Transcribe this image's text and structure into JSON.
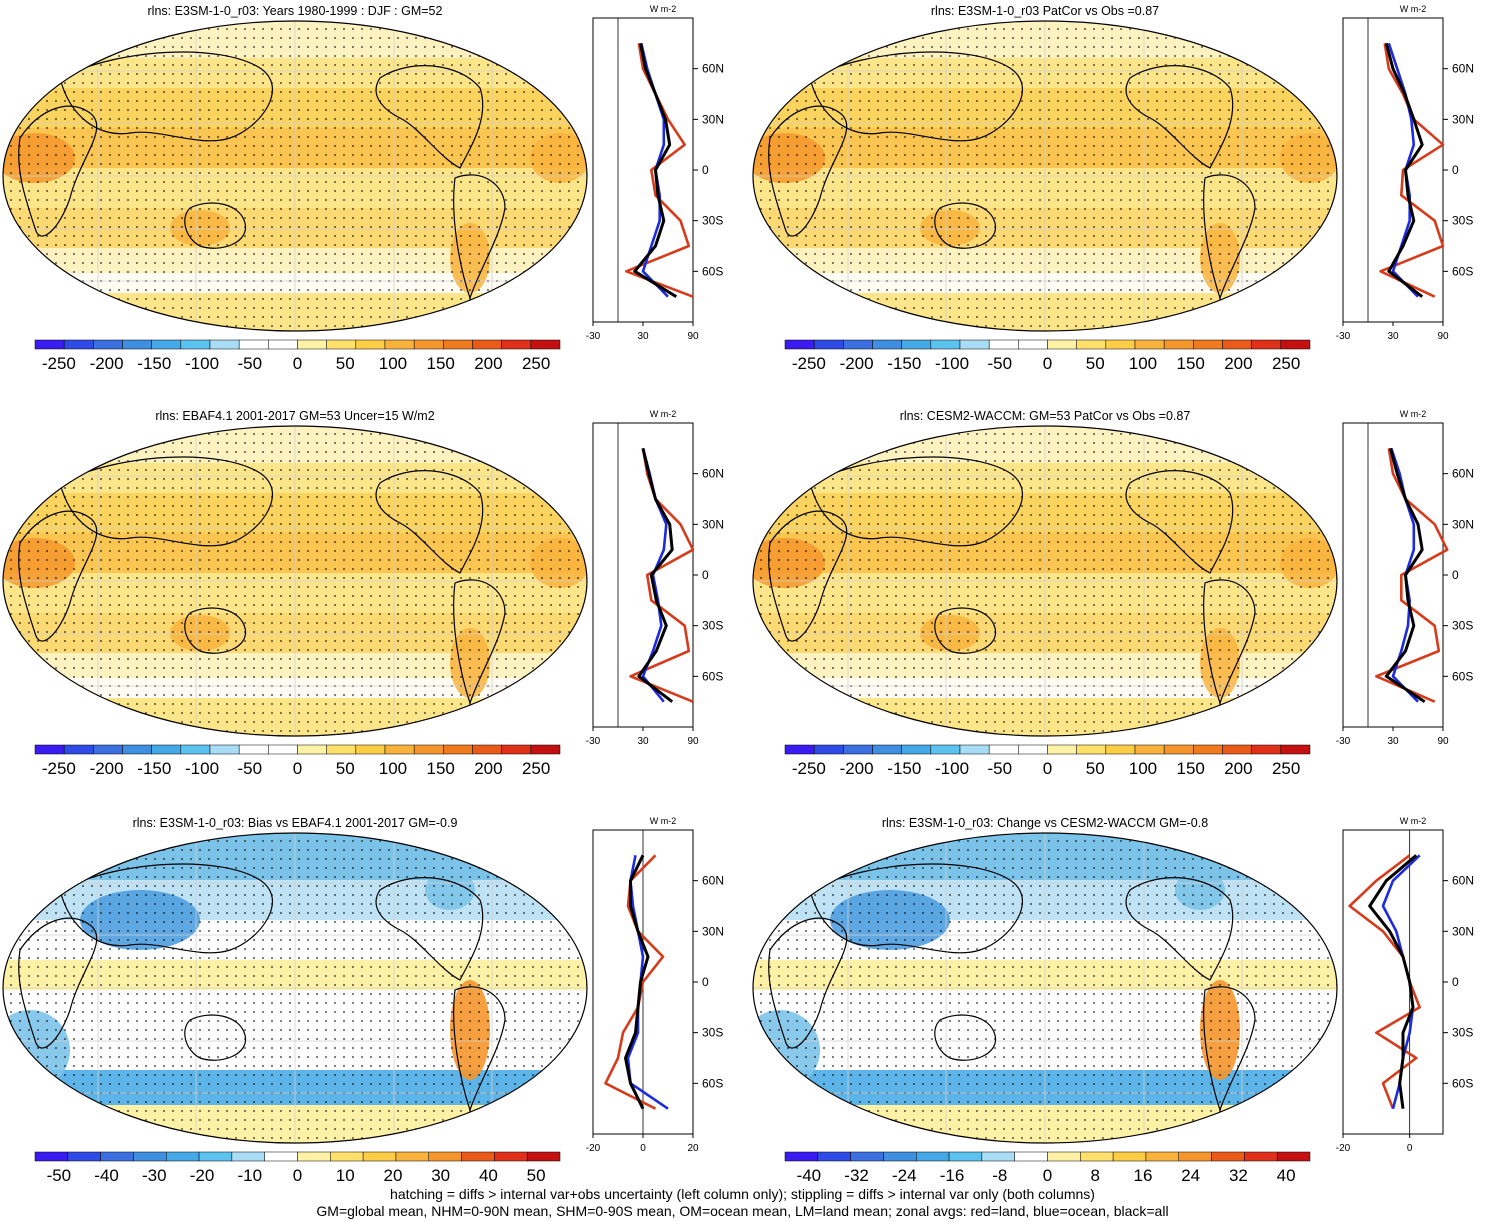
{
  "panels": [
    {
      "title": "rlns: E3SM-1-0_r03: Years 1980-1999 : DJF : GM=52",
      "type": "mean",
      "colorbar": [
        "-250",
        "-200",
        "-150",
        "-100",
        "-50",
        "0",
        "50",
        "100",
        "150",
        "200",
        "250"
      ],
      "zonal_xticks": [
        "-30",
        "30",
        "90"
      ],
      "zonal_unit": "W m-2"
    },
    {
      "title": "rlns: E3SM-1-0_r03 PatCor vs Obs =0.87",
      "type": "mean",
      "colorbar": [
        "-250",
        "-200",
        "-150",
        "-100",
        "-50",
        "0",
        "50",
        "100",
        "150",
        "200",
        "250"
      ],
      "zonal_xticks": [
        "-30",
        "30",
        "90"
      ],
      "zonal_unit": "W m-2"
    },
    {
      "title": "rlns: EBAF4.1 2001-2017 GM=53 Uncer=15 W/m2",
      "type": "mean",
      "colorbar": [
        "-250",
        "-200",
        "-150",
        "-100",
        "-50",
        "0",
        "50",
        "100",
        "150",
        "200",
        "250"
      ],
      "zonal_xticks": [
        "-30",
        "30",
        "90"
      ],
      "zonal_unit": "W m-2"
    },
    {
      "title": "rlns: CESM2-WACCM: GM=53 PatCor vs Obs =0.87",
      "type": "mean",
      "colorbar": [
        "-250",
        "-200",
        "-150",
        "-100",
        "-50",
        "0",
        "50",
        "100",
        "150",
        "200",
        "250"
      ],
      "zonal_xticks": [
        "-30",
        "30",
        "90"
      ],
      "zonal_unit": "W m-2"
    },
    {
      "title": "rlns: E3SM-1-0_r03: Bias vs EBAF4.1 2001-2017 GM=-0.9",
      "type": "diff",
      "colorbar": [
        "-50",
        "-40",
        "-30",
        "-20",
        "-10",
        "0",
        "10",
        "20",
        "30",
        "40",
        "50"
      ],
      "zonal_xticks": [
        "-20",
        "0",
        "20"
      ],
      "zonal_unit": "W m-2"
    },
    {
      "title": "rlns: E3SM-1-0_r03: Change vs CESM2-WACCM GM=-0.8",
      "type": "diff",
      "colorbar": [
        "-40",
        "-32",
        "-24",
        "-16",
        "-8",
        "0",
        "8",
        "16",
        "24",
        "32",
        "40"
      ],
      "zonal_xticks": [
        "-20",
        "0"
      ],
      "zonal_unit": "W m-2"
    }
  ],
  "lat_labels": [
    "60N",
    "30N",
    "0",
    "30S",
    "60S"
  ],
  "footer": {
    "line1": "hatching = diffs > internal var+obs uncertainty (left column only); stippling = diffs > internal var only (both columns)",
    "line2": "GM=global mean, NHM=0-90N mean, SHM=0-90S mean, OM=ocean mean, LM=land mean; zonal avgs: red=land, blue=ocean, black=all"
  },
  "colors": {
    "mean_scale": [
      "#3a1cf0",
      "#2f4be6",
      "#3c6fe0",
      "#3f8ee0",
      "#44a9e6",
      "#5cc2f0",
      "#a8ddf5",
      "#ffffff",
      "#ffffff",
      "#fff1a6",
      "#ffe06b",
      "#fdcd45",
      "#f9b33c",
      "#f5962c",
      "#f07a1e",
      "#ea5a18",
      "#e0301a",
      "#c41010"
    ],
    "land": "#d63c1c",
    "ocean": "#1c2ae0",
    "all": "#000000"
  },
  "chart_data": [
    {
      "type": "map+zonal",
      "title": "rlns: E3SM-1-0_r03: Years 1980-1999 : DJF : GM=52",
      "colorbar_range": [
        -250,
        250
      ],
      "zonal_xlim": [
        -30,
        90
      ],
      "series": [
        {
          "name": "land",
          "lat": [
            75,
            60,
            45,
            30,
            15,
            0,
            -15,
            -30,
            -45,
            -60,
            -75
          ],
          "values": [
            25,
            30,
            45,
            60,
            80,
            40,
            45,
            75,
            85,
            10,
            90
          ]
        },
        {
          "name": "ocean",
          "lat": [
            75,
            60,
            45,
            30,
            15,
            0,
            -15,
            -30,
            -45,
            -60,
            -75
          ],
          "values": [
            28,
            35,
            45,
            55,
            55,
            45,
            50,
            50,
            40,
            30,
            60
          ]
        },
        {
          "name": "all",
          "lat": [
            75,
            60,
            45,
            30,
            15,
            0,
            -15,
            -30,
            -45,
            -60,
            -75
          ],
          "values": [
            27,
            33,
            45,
            57,
            62,
            45,
            48,
            55,
            45,
            20,
            70
          ]
        }
      ]
    },
    {
      "type": "map+zonal",
      "title": "rlns: E3SM-1-0_r03 PatCor vs Obs =0.87",
      "colorbar_range": [
        -250,
        250
      ],
      "zonal_xlim": [
        -30,
        90
      ],
      "series": [
        {
          "name": "land",
          "lat": [
            75,
            60,
            45,
            30,
            15,
            0,
            -15,
            -30,
            -45,
            -60,
            -75
          ],
          "values": [
            20,
            25,
            42,
            55,
            90,
            42,
            40,
            80,
            90,
            15,
            80
          ]
        },
        {
          "name": "ocean",
          "lat": [
            75,
            60,
            45,
            30,
            15,
            0,
            -15,
            -30,
            -45,
            -60,
            -75
          ],
          "values": [
            25,
            35,
            45,
            52,
            55,
            45,
            50,
            50,
            40,
            30,
            60
          ]
        },
        {
          "name": "all",
          "lat": [
            75,
            60,
            45,
            30,
            15,
            0,
            -15,
            -30,
            -45,
            -60,
            -75
          ],
          "values": [
            22,
            30,
            44,
            55,
            65,
            45,
            48,
            55,
            42,
            25,
            65
          ]
        }
      ]
    },
    {
      "type": "map+zonal",
      "title": "rlns: EBAF4.1 2001-2017 GM=53 Uncer=15 W/m2",
      "colorbar_range": [
        -250,
        250
      ],
      "zonal_xlim": [
        -30,
        90
      ],
      "series": [
        {
          "name": "land",
          "lat": [
            75,
            60,
            45,
            30,
            15,
            0,
            -15,
            -30,
            -45,
            -60,
            -75
          ],
          "values": [
            30,
            35,
            45,
            75,
            90,
            35,
            40,
            80,
            85,
            15,
            90
          ]
        },
        {
          "name": "ocean",
          "lat": [
            75,
            60,
            45,
            30,
            15,
            0,
            -15,
            -30,
            -45,
            -60,
            -75
          ],
          "values": [
            30,
            38,
            45,
            58,
            55,
            42,
            48,
            52,
            42,
            30,
            55
          ]
        },
        {
          "name": "all",
          "lat": [
            75,
            60,
            45,
            30,
            15,
            0,
            -15,
            -30,
            -45,
            -60,
            -75
          ],
          "values": [
            30,
            37,
            45,
            62,
            65,
            40,
            46,
            58,
            46,
            25,
            65
          ]
        }
      ]
    },
    {
      "type": "map+zonal",
      "title": "rlns: CESM2-WACCM: GM=53 PatCor vs Obs =0.87",
      "colorbar_range": [
        -250,
        250
      ],
      "zonal_xlim": [
        -30,
        90
      ],
      "series": [
        {
          "name": "land",
          "lat": [
            75,
            60,
            45,
            30,
            15,
            0,
            -15,
            -30,
            -45,
            -60,
            -75
          ],
          "values": [
            25,
            30,
            45,
            80,
            95,
            40,
            40,
            80,
            85,
            10,
            80
          ]
        },
        {
          "name": "ocean",
          "lat": [
            75,
            60,
            45,
            30,
            15,
            0,
            -15,
            -30,
            -45,
            -60,
            -75
          ],
          "values": [
            28,
            38,
            45,
            55,
            55,
            45,
            50,
            48,
            40,
            30,
            60
          ]
        },
        {
          "name": "all",
          "lat": [
            75,
            60,
            45,
            30,
            15,
            0,
            -15,
            -30,
            -45,
            -60,
            -75
          ],
          "values": [
            27,
            35,
            45,
            60,
            65,
            45,
            48,
            55,
            45,
            22,
            68
          ]
        }
      ]
    },
    {
      "type": "map+zonal",
      "title": "rlns: E3SM-1-0_r03: Bias vs EBAF4.1 2001-2017 GM=-0.9",
      "colorbar_range": [
        -50,
        50
      ],
      "zonal_xlim": [
        -20,
        20
      ],
      "series": [
        {
          "name": "land",
          "lat": [
            75,
            60,
            45,
            30,
            15,
            0,
            -15,
            -30,
            -45,
            -60,
            -75
          ],
          "values": [
            5,
            -5,
            -6,
            -2,
            8,
            0,
            -2,
            -8,
            -10,
            -15,
            5
          ]
        },
        {
          "name": "ocean",
          "lat": [
            75,
            60,
            45,
            30,
            15,
            0,
            -15,
            -30,
            -45,
            -60,
            -75
          ],
          "values": [
            -3,
            -5,
            -4,
            -2,
            0,
            -1,
            -2,
            -2,
            -6,
            -5,
            10
          ]
        },
        {
          "name": "all",
          "lat": [
            75,
            60,
            45,
            30,
            15,
            0,
            -15,
            -30,
            -45,
            -60,
            -75
          ],
          "values": [
            0,
            -5,
            -5,
            -2,
            2,
            -1,
            -2,
            -3,
            -7,
            -5,
            0
          ]
        }
      ]
    },
    {
      "type": "map+zonal",
      "title": "rlns: E3SM-1-0_r03: Change vs CESM2-WACCM GM=-0.8",
      "colorbar_range": [
        -40,
        40
      ],
      "zonal_xlim": [
        -20,
        10
      ],
      "series": [
        {
          "name": "land",
          "lat": [
            75,
            60,
            45,
            30,
            15,
            0,
            -15,
            -30,
            -45,
            -60,
            -75
          ],
          "values": [
            0,
            -10,
            -18,
            -8,
            -2,
            0,
            3,
            -10,
            2,
            -8,
            -5
          ]
        },
        {
          "name": "ocean",
          "lat": [
            75,
            60,
            45,
            30,
            15,
            0,
            -15,
            -30,
            -45,
            -60,
            -75
          ],
          "values": [
            3,
            -5,
            -8,
            -4,
            -2,
            0,
            1,
            0,
            -2,
            -3,
            -5
          ]
        },
        {
          "name": "all",
          "lat": [
            75,
            60,
            45,
            30,
            15,
            0,
            -15,
            -30,
            -45,
            -60,
            -75
          ],
          "values": [
            2,
            -7,
            -12,
            -6,
            -2,
            0,
            1,
            -2,
            -2,
            -3,
            -2
          ]
        }
      ]
    }
  ]
}
